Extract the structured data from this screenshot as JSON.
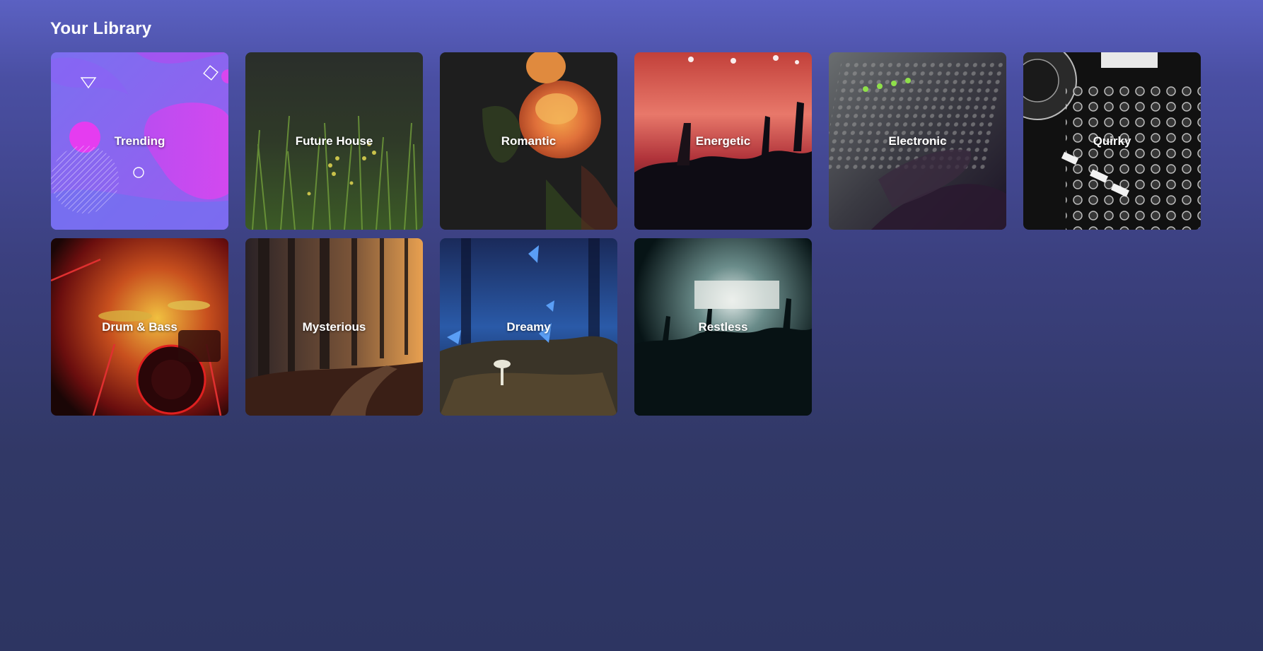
{
  "library": {
    "title": "Your Library",
    "tiles": [
      {
        "label": "Trending"
      },
      {
        "label": "Future House"
      },
      {
        "label": "Romantic"
      },
      {
        "label": "Energetic"
      },
      {
        "label": "Electronic"
      },
      {
        "label": "Quirky"
      },
      {
        "label": "Drum & Bass"
      },
      {
        "label": "Mysterious"
      },
      {
        "label": "Dreamy"
      },
      {
        "label": "Restless"
      }
    ]
  }
}
